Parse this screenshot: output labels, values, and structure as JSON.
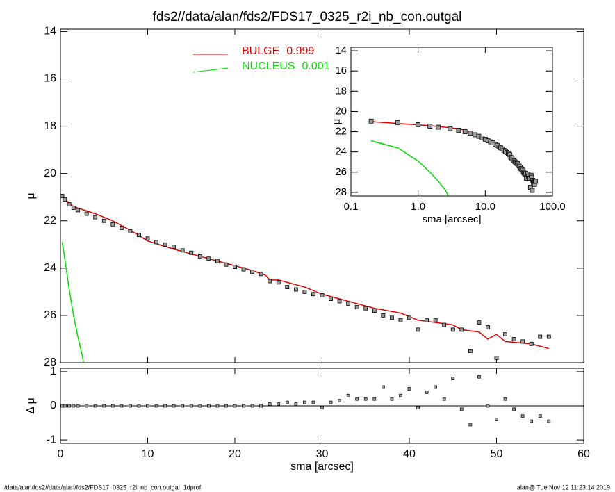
{
  "chart_data": [
    {
      "type": "line",
      "title": "fds2//data/alan/fds2/FDS17_0325_r2i_nb_con.outgal",
      "ylabel": "μ",
      "xlim": [
        0,
        60
      ],
      "xticks": [
        0,
        10,
        20,
        30,
        40,
        50,
        60
      ],
      "ylim": [
        13.9,
        28
      ],
      "yticks": [
        14,
        16,
        18,
        20,
        22,
        24,
        26,
        28
      ],
      "points": {
        "color": "#999999",
        "x": [
          0.2,
          0.5,
          1,
          1.5,
          2,
          3,
          4,
          5,
          6,
          7,
          8,
          9,
          10,
          11,
          12,
          13,
          14,
          15,
          16,
          17,
          18,
          19,
          20,
          21,
          22,
          23,
          24,
          25,
          26,
          27,
          28,
          29,
          30,
          31,
          32,
          33,
          34,
          35,
          36,
          37,
          38,
          39,
          40,
          41,
          42,
          43,
          44,
          45,
          46,
          47,
          48,
          49,
          50,
          51,
          52,
          53,
          54,
          55,
          56
        ],
        "values": [
          20.95,
          21.1,
          21.3,
          21.45,
          21.55,
          21.7,
          21.85,
          22.0,
          22.15,
          22.3,
          22.45,
          22.6,
          22.75,
          22.9,
          23.0,
          23.1,
          23.25,
          23.35,
          23.5,
          23.6,
          23.7,
          23.85,
          23.95,
          24.05,
          24.15,
          24.25,
          24.55,
          24.6,
          24.8,
          24.9,
          25.0,
          25.1,
          25.15,
          25.3,
          25.4,
          25.5,
          25.65,
          25.7,
          25.8,
          26.0,
          26.1,
          26.2,
          26.1,
          26.6,
          26.2,
          26.2,
          26.4,
          26.6,
          26.6,
          27.5,
          26.3,
          26.5,
          27.8,
          26.8,
          27.0,
          27.1,
          27.2,
          26.9,
          26.9
        ]
      },
      "series": [
        {
          "name": "BULGE",
          "fraction": 0.999,
          "color": "#e00000",
          "x": [
            0.2,
            1.5,
            4,
            6,
            8,
            10,
            13,
            16,
            19,
            22,
            23.5,
            24,
            25,
            28,
            30,
            33,
            36,
            39,
            41,
            43,
            45,
            46,
            48,
            49,
            50,
            51,
            54,
            56
          ],
          "values": [
            21.0,
            21.4,
            21.7,
            22.0,
            22.4,
            22.85,
            23.2,
            23.5,
            23.8,
            24.1,
            24.3,
            24.5,
            24.5,
            24.8,
            25.1,
            25.4,
            25.7,
            25.9,
            26.2,
            26.3,
            26.4,
            26.6,
            26.7,
            27.0,
            26.8,
            27.1,
            27.2,
            27.4
          ]
        },
        {
          "name": "NUCLEUS",
          "fraction": 0.001,
          "color": "#00dd00",
          "x": [
            0.2,
            0.5,
            1,
            1.5,
            2,
            2.5,
            2.8
          ],
          "values": [
            22.9,
            23.6,
            24.9,
            26.0,
            26.9,
            27.7,
            28.3
          ]
        }
      ]
    },
    {
      "type": "scatter",
      "ylabel": "Δ μ",
      "xlabel": "sma [arcsec]",
      "xlim": [
        0,
        60
      ],
      "xticks": [
        0,
        10,
        20,
        30,
        40,
        50,
        60
      ],
      "ylim": [
        1.1,
        -1.1
      ],
      "yticks": [
        1,
        0,
        -1
      ],
      "values": [
        0,
        0,
        0,
        0,
        0,
        0,
        0,
        0,
        0,
        0,
        0,
        0,
        0,
        0,
        0,
        0,
        0,
        0,
        0,
        0,
        0,
        0,
        0,
        0,
        0,
        0,
        0.05,
        0.05,
        0.1,
        0.05,
        0.1,
        0.1,
        -0.05,
        0.1,
        0.15,
        0.3,
        0.2,
        0.2,
        0.2,
        0.55,
        0.2,
        0.3,
        0.5,
        -0.05,
        0.4,
        0.55,
        0.2,
        0.8,
        -0.1,
        -0.55,
        0.85,
        0,
        -0.4,
        0.2,
        -0.1,
        -0.3,
        -0.45,
        -0.3,
        -0.45
      ]
    },
    {
      "type": "line",
      "log_x": true,
      "ylabel": "μ",
      "xlabel": "sma [arcsec]",
      "xlim": [
        0.1,
        100
      ],
      "xticks": [
        0.1,
        {
          "value": 1,
          "label": "1.0"
        },
        {
          "value": 10,
          "label": "10.0"
        },
        {
          "value": 100,
          "label": "100.0"
        }
      ],
      "ylim": [
        13.65,
        28.35
      ],
      "yticks": [
        14,
        16,
        18,
        20,
        22,
        24,
        26,
        28
      ]
    }
  ],
  "footer": {
    "left": "/data/alan/fds2//data/alan/fds2/FDS17_0325_r2i_nb_con.outgal_1dprof",
    "right": "alan@  Tue Nov 12 11:23:14 2019"
  }
}
